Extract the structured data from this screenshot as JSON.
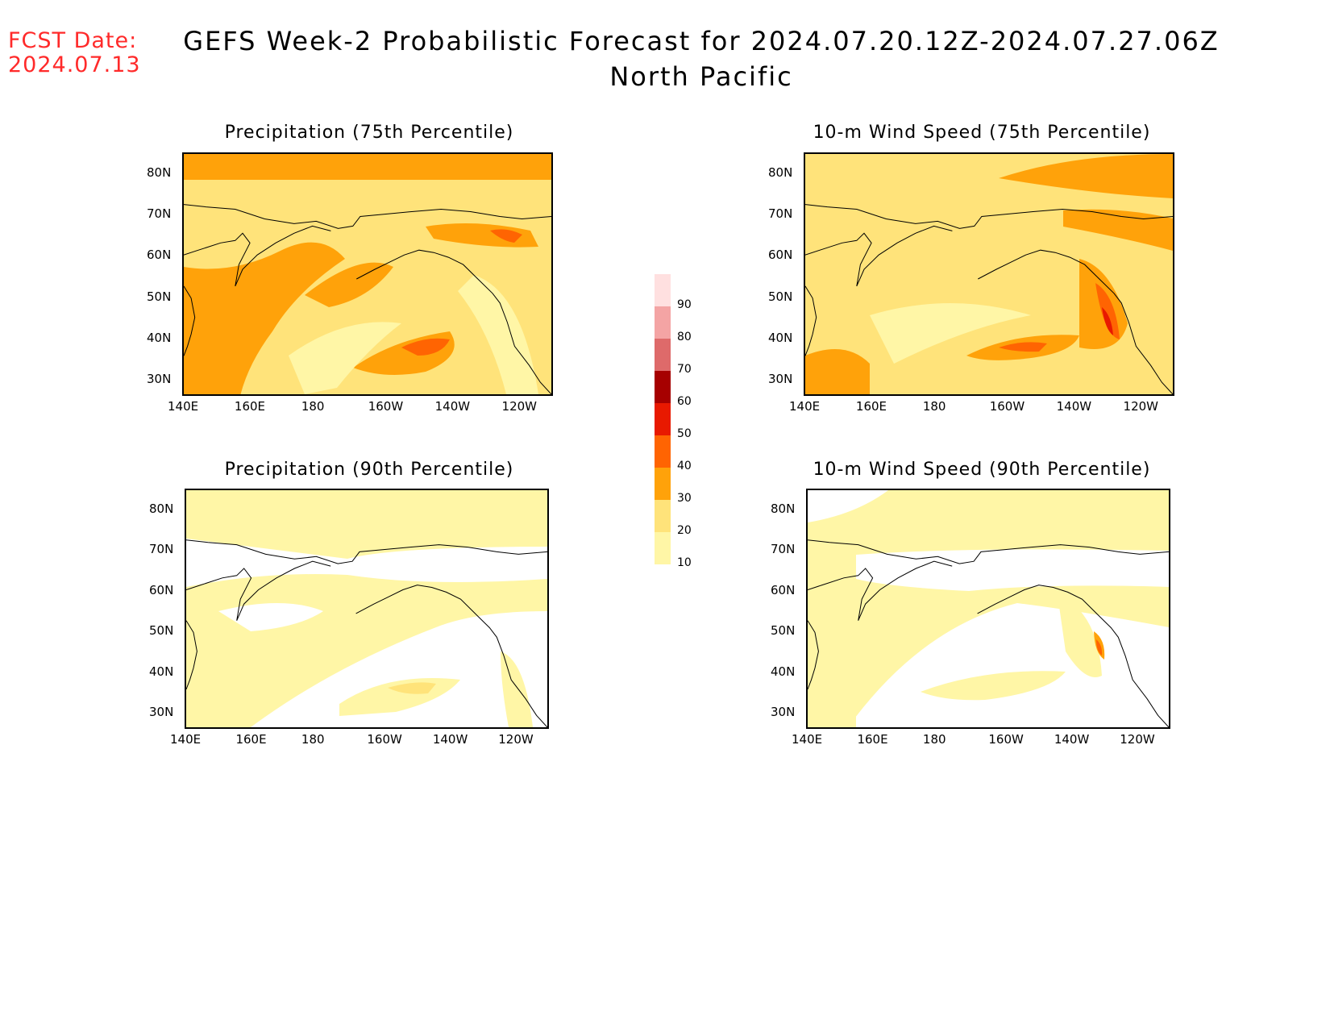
{
  "header": {
    "fcst_label": "FCST Date:",
    "fcst_date": "2024.07.13",
    "title": "GEFS Week-2 Probabilistic Forecast for 2024.07.20.12Z-2024.07.27.06Z",
    "subtitle": "North Pacific"
  },
  "lon_ticks": [
    "140E",
    "160E",
    "180",
    "160W",
    "140W",
    "120W"
  ],
  "lat_ticks": [
    "80N",
    "70N",
    "60N",
    "50N",
    "40N",
    "30N"
  ],
  "panels": [
    {
      "title": "Precipitation (75th Percentile)",
      "base_level": 20
    },
    {
      "title": "10-m Wind Speed (75th Percentile)",
      "base_level": 20
    },
    {
      "title": "Precipitation (90th Percentile)",
      "base_level": 10
    },
    {
      "title": "10-m Wind Speed (90th Percentile)",
      "base_level": 10
    }
  ],
  "colorbar": {
    "levels": [
      "10",
      "20",
      "30",
      "40",
      "50",
      "60",
      "70",
      "80",
      "90"
    ],
    "colors": [
      "#fff6a6",
      "#ffe37a",
      "#ffa20a",
      "#ff6402",
      "#e81900",
      "#a60000",
      "#de6a6a",
      "#f4a4a4",
      "#ffe0e0"
    ]
  }
}
